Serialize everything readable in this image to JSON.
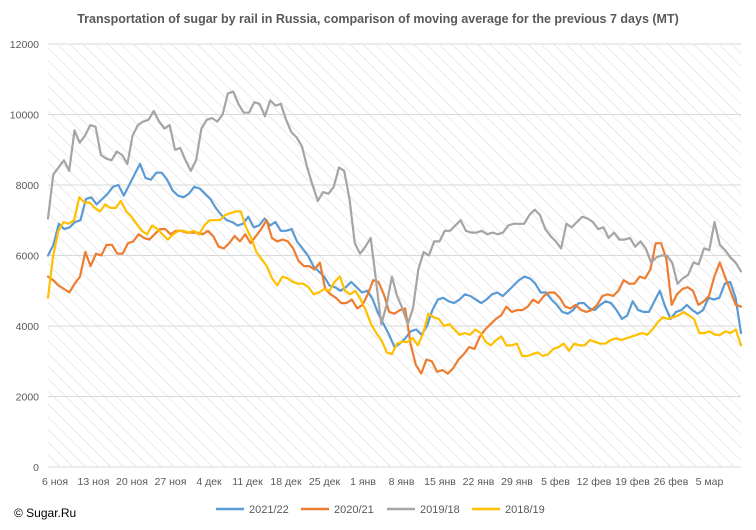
{
  "chart_data": {
    "type": "line",
    "title": "Transportation of sugar by rail in Russia, comparison of moving average for the previous 7 days (MT)",
    "xlabel": "",
    "ylabel": "",
    "ylim": [
      0,
      12000
    ],
    "yticks": [
      0,
      2000,
      4000,
      6000,
      8000,
      10000,
      12000
    ],
    "x_tick_labels": [
      "6 ноя",
      "13 ноя",
      "20 ноя",
      "27 ноя",
      "4 дек",
      "11 дек",
      "18 дек",
      "25 дек",
      "1 янв",
      "8 янв",
      "15 янв",
      "22 янв",
      "29 янв",
      "5 фев",
      "12 фев",
      "19 фев",
      "26 фев",
      "5 мар"
    ],
    "x_day_count": 126,
    "grid": "horizontal gridlines, diagonal hatched plot area",
    "legend_position": "bottom",
    "series": [
      {
        "name": "2021/22",
        "color": "#5b9bd5",
        "values": [
          6000,
          6300,
          6900,
          6750,
          6800,
          6950,
          7000,
          7600,
          7650,
          7450,
          7600,
          7750,
          7950,
          8000,
          7700,
          8000,
          8300,
          8600,
          8200,
          8150,
          8350,
          8350,
          8150,
          7850,
          7700,
          7650,
          7750,
          7950,
          7900,
          7750,
          7600,
          7350,
          7150,
          7000,
          6950,
          6850,
          6900,
          7100,
          6800,
          6850,
          7050,
          6850,
          6950,
          6700,
          6700,
          6750,
          6400,
          6200,
          6000,
          5700,
          5550,
          5400,
          5150,
          5100,
          5000,
          5100,
          5250,
          5100,
          4950,
          5000,
          4750,
          4350,
          4050,
          3750,
          3400,
          3500,
          3650,
          3850,
          3900,
          3750,
          4000,
          4450,
          4750,
          4800,
          4700,
          4650,
          4750,
          4900,
          4850,
          4750,
          4650,
          4750,
          4900,
          4950,
          4850,
          5000,
          5150,
          5300,
          5400,
          5350,
          5200,
          4950,
          4950,
          4750,
          4600,
          4400,
          4350,
          4450,
          4650,
          4650,
          4500,
          4450,
          4600,
          4700,
          4650,
          4450,
          4200,
          4300,
          4700,
          4450,
          4400,
          4400,
          4700,
          5000,
          4550,
          4200,
          4400,
          4450,
          4600,
          4450,
          4350,
          4450,
          4800,
          4750,
          4800,
          5200,
          5250,
          4800,
          3800
        ]
      },
      {
        "name": "2020/21",
        "color": "#ed7d31",
        "values": [
          5400,
          5300,
          5150,
          5050,
          4950,
          5200,
          5400,
          6100,
          5700,
          6050,
          6000,
          6300,
          6300,
          6050,
          6050,
          6350,
          6400,
          6600,
          6500,
          6450,
          6600,
          6750,
          6750,
          6600,
          6700,
          6700,
          6650,
          6650,
          6650,
          6600,
          6700,
          6550,
          6250,
          6200,
          6350,
          6550,
          6400,
          6600,
          6350,
          6550,
          6750,
          7000,
          6500,
          6400,
          6450,
          6400,
          6200,
          5850,
          5700,
          5700,
          5600,
          5800,
          5050,
          4900,
          4800,
          4650,
          4650,
          4750,
          4500,
          4600,
          4900,
          5300,
          5250,
          4900,
          4400,
          4350,
          4450,
          4500,
          3500,
          2900,
          2650,
          3050,
          3000,
          2700,
          2750,
          2650,
          2800,
          3050,
          3200,
          3400,
          3350,
          3700,
          3900,
          4050,
          4200,
          4300,
          4550,
          4400,
          4450,
          4450,
          4550,
          4750,
          4650,
          4850,
          4950,
          4950,
          4800,
          4550,
          4500,
          4600,
          4450,
          4400,
          4450,
          4600,
          4850,
          4900,
          4850,
          5000,
          5300,
          5200,
          5200,
          5400,
          5350,
          5600,
          6350,
          6350,
          5900,
          4600,
          4900,
          5050,
          5100,
          5000,
          4600,
          4700,
          4850,
          5400,
          5800,
          5400,
          5000,
          4600,
          4550
        ]
      },
      {
        "name": "2019/18",
        "color": "#a5a5a5",
        "values": [
          7050,
          8300,
          8500,
          8700,
          8400,
          9550,
          9200,
          9400,
          9700,
          9650,
          8850,
          8750,
          8700,
          8950,
          8850,
          8600,
          9400,
          9700,
          9800,
          9850,
          10100,
          9800,
          9600,
          9700,
          9000,
          9050,
          8700,
          8400,
          8700,
          9600,
          9850,
          9900,
          9800,
          10000,
          10600,
          10650,
          10300,
          10050,
          10050,
          10350,
          10300,
          9950,
          10400,
          10250,
          10300,
          9850,
          9500,
          9350,
          9100,
          8500,
          8000,
          7550,
          7800,
          7750,
          7950,
          8500,
          8400,
          7600,
          6350,
          6050,
          6250,
          6500,
          5300,
          4050,
          4600,
          5400,
          4850,
          4500,
          4050,
          4500,
          5600,
          6100,
          6000,
          6400,
          6400,
          6700,
          6700,
          6850,
          7000,
          6700,
          6650,
          6650,
          6700,
          6600,
          6650,
          6600,
          6650,
          6850,
          6900,
          6900,
          6900,
          7150,
          7300,
          7150,
          6750,
          6550,
          6400,
          6200,
          6900,
          6800,
          6950,
          7100,
          7050,
          6950,
          6750,
          6800,
          6500,
          6650,
          6450,
          6450,
          6500,
          6250,
          6400,
          6200,
          5800,
          5950,
          6000,
          6000,
          5800,
          5200,
          5350,
          5450,
          5800,
          5750,
          6200,
          6150,
          6950,
          6300,
          6150,
          5950,
          5800,
          5550
        ]
      },
      {
        "name": "2018/19",
        "color": "#ffc000",
        "values": [
          4800,
          6000,
          6700,
          6950,
          6900,
          7000,
          7650,
          7500,
          7500,
          7350,
          7250,
          7450,
          7350,
          7350,
          7550,
          7250,
          7100,
          6900,
          6700,
          6600,
          6850,
          6750,
          6600,
          6450,
          6600,
          6700,
          6700,
          6650,
          6700,
          6600,
          6850,
          7000,
          7000,
          7000,
          7150,
          7200,
          7250,
          7250,
          6800,
          6500,
          6100,
          5900,
          5700,
          5350,
          5150,
          5400,
          5350,
          5250,
          5200,
          5200,
          5100,
          4900,
          4950,
          5050,
          5000,
          5250,
          5400,
          5000,
          4900,
          5000,
          4750,
          4450,
          4050,
          3800,
          3600,
          3250,
          3200,
          3500,
          3550,
          3550,
          3650,
          3450,
          3800,
          4350,
          4250,
          4200,
          4000,
          4050,
          3900,
          3750,
          3800,
          3750,
          3900,
          3800,
          3550,
          3450,
          3600,
          3700,
          3450,
          3450,
          3500,
          3150,
          3150,
          3200,
          3250,
          3150,
          3200,
          3350,
          3400,
          3500,
          3300,
          3500,
          3450,
          3450,
          3600,
          3550,
          3500,
          3500,
          3600,
          3650,
          3600,
          3650,
          3700,
          3750,
          3800,
          3750,
          3900,
          4100,
          4250,
          4200,
          4250,
          4300,
          4400,
          4300,
          4200,
          3800,
          3800,
          3850,
          3750,
          3750,
          3850,
          3800,
          3900,
          3450
        ]
      }
    ]
  },
  "credit": "© Sugar.Ru"
}
